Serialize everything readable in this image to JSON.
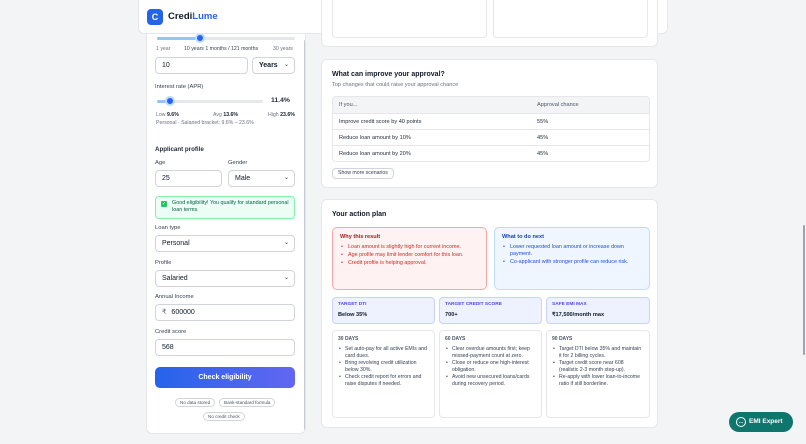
{
  "brand": {
    "name_a": "Credi",
    "name_b": "Lume",
    "logo_glyph": "C"
  },
  "header_tools": {
    "menu_icon": "≡",
    "accessibility_icon": "☥",
    "theme_icon": "☾"
  },
  "tenure": {
    "min_label": "1 year",
    "current_label": "10 years 1 months / 121 months",
    "max_label": "30 years",
    "level_fraction": 0.31,
    "value": "10",
    "unit": "Years"
  },
  "interest": {
    "label": "Interest rate (APR)",
    "value": "11.4%",
    "level_fraction": 0.12,
    "low_label": "Low",
    "low": "9.6%",
    "avg_label": "Avg",
    "avg": "13.6%",
    "high_label": "High",
    "high": "23.6%",
    "bracket": "Personal · Salaried bracket: 9.6% – 23.6%"
  },
  "applicant": {
    "title": "Applicant profile",
    "age_label": "Age",
    "age": "25",
    "gender_label": "Gender",
    "gender": "Male",
    "notice": "Good eligibility! You qualify for standard personal loan terms.",
    "loan_type_label": "Loan type",
    "loan_type": "Personal",
    "profile_label": "Profile",
    "profile": "Salaried",
    "income_label": "Annual Income",
    "currency": "₹",
    "income": "600000",
    "credit_label": "Credit score",
    "credit": "568"
  },
  "cta": "Check eligibility",
  "chips": [
    "No data stored",
    "Bank-standard formula",
    "No credit check"
  ],
  "improve": {
    "title": "What can improve your approval?",
    "subtitle": "Top changes that could raise your approval chance",
    "headers": [
      "If you...",
      "Approval chance"
    ],
    "rows": [
      [
        "Improve credit score by 40 points",
        "55%"
      ],
      [
        "Reduce loan amount by 10%",
        "45%"
      ],
      [
        "Reduce loan amount by 20%",
        "45%"
      ]
    ],
    "more": "Show more scenarios"
  },
  "plan": {
    "title": "Your action plan",
    "why_title": "Why this result",
    "why": [
      "Loan amount is slightly high for current income.",
      "Age profile may limit lender comfort for this loan.",
      "Credit profile is helping approval."
    ],
    "next_title": "What to do next",
    "next": [
      "Lower requested loan amount or increase down payment.",
      "Co-applicant with stronger profile can reduce risk."
    ],
    "metrics": [
      {
        "label": "TARGET DTI",
        "value": "Below 35%"
      },
      {
        "label": "TARGET CREDIT SCORE",
        "value": "700+"
      },
      {
        "label": "SAFE EMI MAX",
        "value": "₹17,500/month max"
      }
    ],
    "steps": [
      {
        "title": "30 DAYS",
        "items": [
          "Set auto-pay for all active EMIs and card dues.",
          "Bring revolving credit utilization below 30%.",
          "Check credit report for errors and raise disputes if needed."
        ]
      },
      {
        "title": "60 DAYS",
        "items": [
          "Clear overdue amounts first; keep missed-payment count at zero.",
          "Close or reduce one high-interest obligation.",
          "Avoid new unsecured loans/cards during recovery period."
        ]
      },
      {
        "title": "90 DAYS",
        "items": [
          "Target DTI below 35% and maintain it for 2 billing cycles.",
          "Target credit score near 608 (realistic 2-3 month step-up).",
          "Re-apply with lower loan-to-income ratio if still borderline."
        ]
      }
    ]
  },
  "emi_button": "EMI Expert",
  "colors": {
    "accent": "#2563eb",
    "success": "#22c55e",
    "danger": "#dc2626",
    "emi": "#0f766e"
  }
}
